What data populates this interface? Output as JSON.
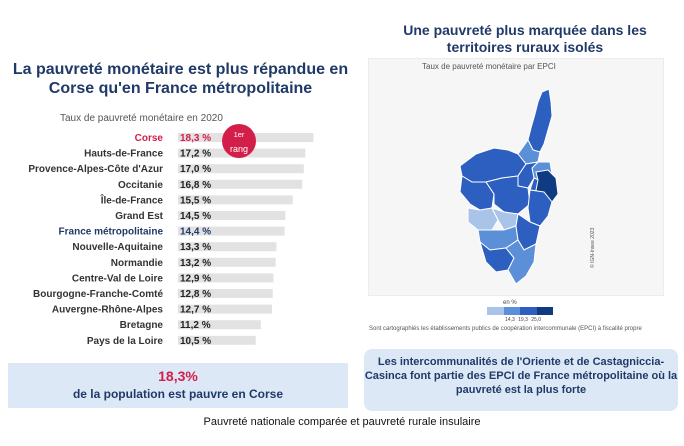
{
  "chart_data": [
    {
      "type": "bar",
      "title": "La pauvreté monétaire est plus répandue en Corse qu'en France métropolitaine",
      "subtitle": "Taux de pauvreté monétaire en 2020",
      "categories": [
        "Corse",
        "Hauts-de-France",
        "Provence-Alpes-Côte d'Azur",
        "Occitanie",
        "Île-de-France",
        "Grand Est",
        "France métropolitaine",
        "Nouvelle-Aquitaine",
        "Normandie",
        "Centre-Val de Loire",
        "Bourgogne-Franche-Comté",
        "Auvergne-Rhône-Alpes",
        "Bretagne",
        "Pays de la Loire"
      ],
      "values": [
        18.3,
        17.2,
        17.0,
        16.8,
        15.5,
        14.5,
        14.4,
        13.3,
        13.2,
        12.9,
        12.8,
        12.7,
        11.2,
        10.5
      ],
      "value_labels": [
        "18,3 %",
        "17,2 %",
        "17,0 %",
        "16,8 %",
        "15,5 %",
        "14,5 %",
        "14,4 %",
        "13,3 %",
        "13,2 %",
        "12,9 %",
        "12,8 %",
        "12,7 %",
        "11,2 %",
        "10,5 %"
      ],
      "highlight": {
        "Corse": "#d41e4a",
        "France métropolitaine": "#1f3a68"
      },
      "badge": {
        "sup": "1er",
        "text": "rang"
      },
      "xlim": [
        0,
        20
      ]
    },
    {
      "type": "heatmap",
      "title": "Une pauvreté plus marquée dans les territoires ruraux isolés",
      "subtitle": "Taux de pauvreté monétaire par EPCI",
      "legend_unit": "en %",
      "legend_ticks": [
        "14,3",
        "19,3",
        "25,0"
      ],
      "legend_colors": [
        "#a9c4e8",
        "#5b8fd8",
        "#2c5fc0",
        "#0f3b82"
      ],
      "copyright": "© IGN-Insee 2023",
      "note": "Sont cartographiés les établissements publics de coopération intercommunale (EPCI) à fiscalité propre"
    }
  ],
  "left_box": {
    "value": "18,3%",
    "text": "de la population est pauvre en Corse"
  },
  "right_box": {
    "text": "Les intercommunalités de l'Oriente et de Castagniccia-Casinca font partie des EPCI de France métropolitaine où la pauvreté est la plus forte"
  },
  "caption": "Pauvreté nationale comparée et  pauvreté rurale insulaire",
  "colors": {
    "title": "#1f3a68",
    "accent": "#d41e4a",
    "bar_track": "#e2e2e2",
    "box": "#dde8f6"
  }
}
